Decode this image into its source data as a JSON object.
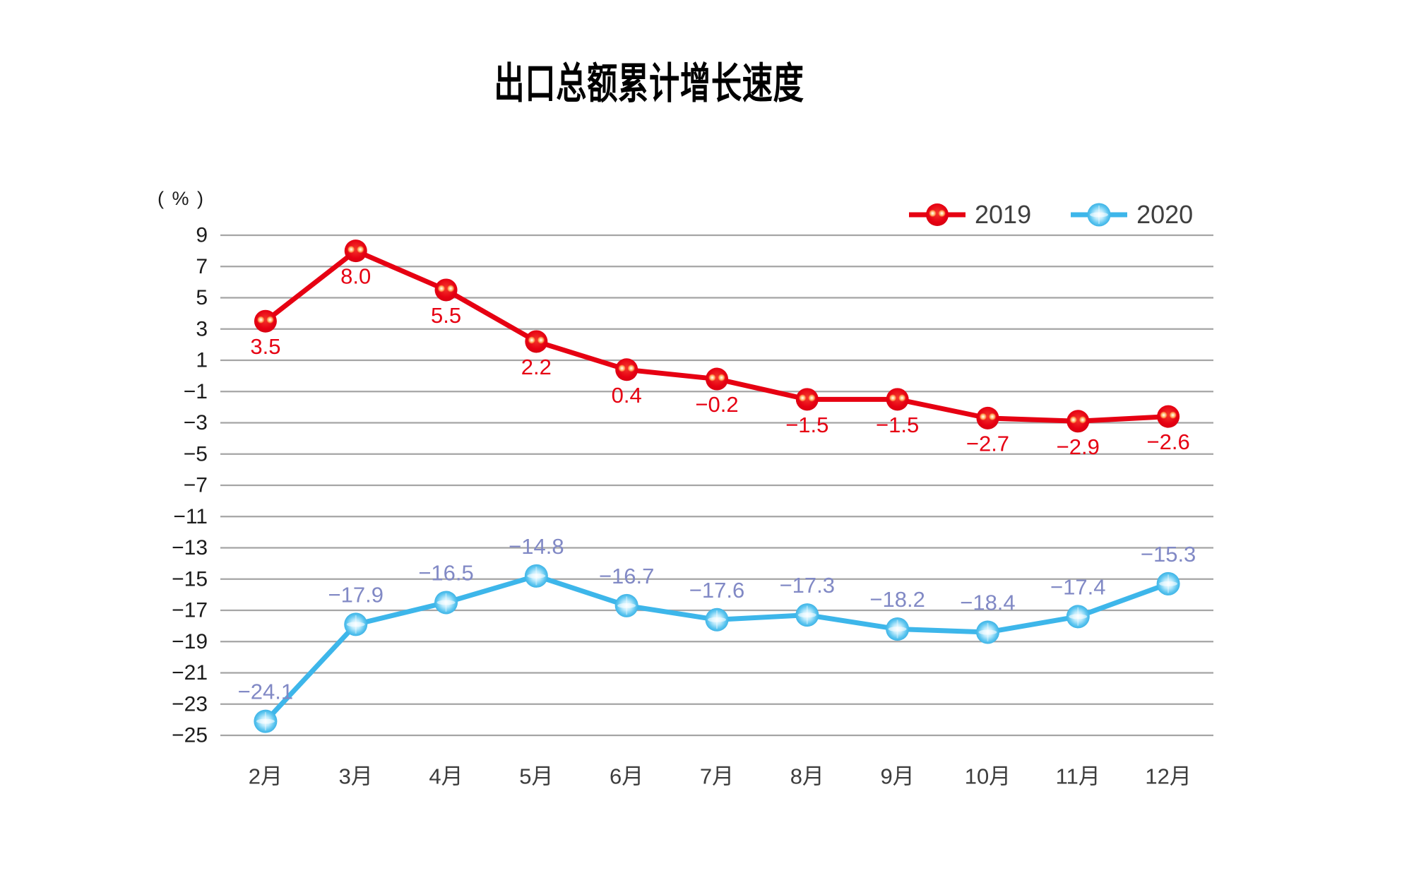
{
  "title": "出口总额累计增长速度",
  "unit_label": "( % )",
  "colors": {
    "background": "#ffffff",
    "grid": "#a5a5a5",
    "axis_text": "#1c1c1c",
    "x_label_text": "#3d3d3d",
    "legend_text": "#3f3f3f",
    "title_text": "#000000",
    "series_2019": "#e60012",
    "series_2020": "#3db6ea",
    "label_2020": "#8189c5"
  },
  "chart_data": {
    "type": "line",
    "title": "出口总额累计增长速度",
    "unit_label": "( % )",
    "xlabel": "",
    "ylabel": "%",
    "categories": [
      "2月",
      "3月",
      "4月",
      "5月",
      "6月",
      "7月",
      "8月",
      "9月",
      "10月",
      "11月",
      "12月"
    ],
    "series": [
      {
        "name": "2019",
        "color": "#e60012",
        "label_color": "#e60012",
        "marker": "red-sphere",
        "label_position": "below",
        "values": [
          3.5,
          8.0,
          5.5,
          2.2,
          0.4,
          -0.2,
          -1.5,
          -1.5,
          -2.7,
          -2.9,
          -2.6
        ]
      },
      {
        "name": "2020",
        "color": "#3db6ea",
        "label_color": "#8189c5",
        "marker": "blue-sphere",
        "label_position": "above",
        "values": [
          -24.1,
          -17.9,
          -16.5,
          -14.8,
          -16.7,
          -17.6,
          -17.3,
          -18.2,
          -18.4,
          -17.4,
          -15.3
        ]
      }
    ],
    "y_ticks": [
      9,
      7,
      5,
      3,
      1,
      -1,
      -3,
      -5,
      -7,
      -11,
      -13,
      -15,
      -17,
      -19,
      -21,
      -23,
      -25
    ],
    "axis_break_between": [
      -7,
      -11
    ],
    "grid": true,
    "legend_position": "top-right",
    "data_labels_decimals": 1
  }
}
